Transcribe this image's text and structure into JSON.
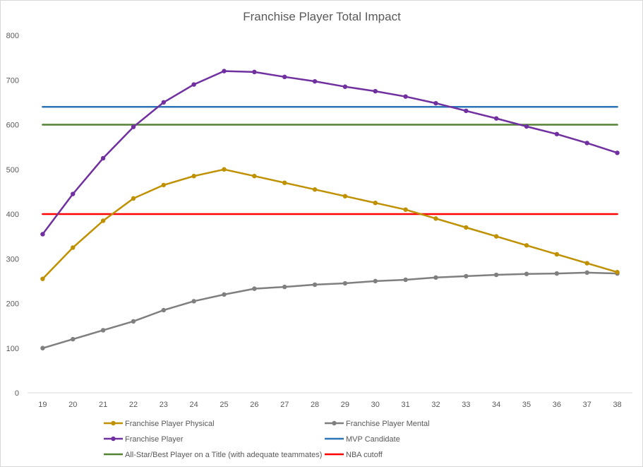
{
  "chart_data": {
    "type": "line",
    "title": "Franchise Player Total Impact",
    "xlabel": "",
    "ylabel": "",
    "categories": [
      "19",
      "20",
      "21",
      "22",
      "23",
      "24",
      "25",
      "26",
      "27",
      "28",
      "29",
      "30",
      "31",
      "32",
      "33",
      "34",
      "35",
      "36",
      "37",
      "38"
    ],
    "ylim": [
      0,
      800
    ],
    "yticks": [
      0,
      100,
      200,
      300,
      400,
      500,
      600,
      700,
      800
    ],
    "grid": false,
    "legend_position": "bottom",
    "series": [
      {
        "name": "Franchise Player Physical",
        "color": "#bf9000",
        "markers": true,
        "values": [
          255,
          325,
          385,
          435,
          465,
          485,
          500,
          485,
          470,
          455,
          440,
          425,
          410,
          390,
          370,
          350,
          330,
          310,
          290,
          270
        ]
      },
      {
        "name": "Franchise Player Mental",
        "color": "#7f7f7f",
        "markers": true,
        "values": [
          100,
          120,
          140,
          160,
          185,
          205,
          220,
          233,
          237,
          242,
          245,
          250,
          253,
          258,
          261,
          264,
          266,
          267,
          269,
          267
        ]
      },
      {
        "name": "Franchise Player",
        "color": "#7030a0",
        "markers": true,
        "values": [
          355,
          445,
          525,
          595,
          650,
          690,
          720,
          718,
          707,
          697,
          685,
          675,
          663,
          648,
          631,
          614,
          596,
          579,
          559,
          537
        ]
      },
      {
        "name": "MVP Candidate",
        "color": "#2e75b6",
        "markers": false,
        "values": [
          640,
          640,
          640,
          640,
          640,
          640,
          640,
          640,
          640,
          640,
          640,
          640,
          640,
          640,
          640,
          640,
          640,
          640,
          640,
          640
        ]
      },
      {
        "name": "All-Star/Best Player on a Title (with adequate teammates)",
        "color": "#548235",
        "markers": false,
        "values": [
          600,
          600,
          600,
          600,
          600,
          600,
          600,
          600,
          600,
          600,
          600,
          600,
          600,
          600,
          600,
          600,
          600,
          600,
          600,
          600
        ]
      },
      {
        "name": "NBA cutoff",
        "color": "#ff0000",
        "markers": false,
        "values": [
          400,
          400,
          400,
          400,
          400,
          400,
          400,
          400,
          400,
          400,
          400,
          400,
          400,
          400,
          400,
          400,
          400,
          400,
          400,
          400
        ]
      }
    ]
  }
}
